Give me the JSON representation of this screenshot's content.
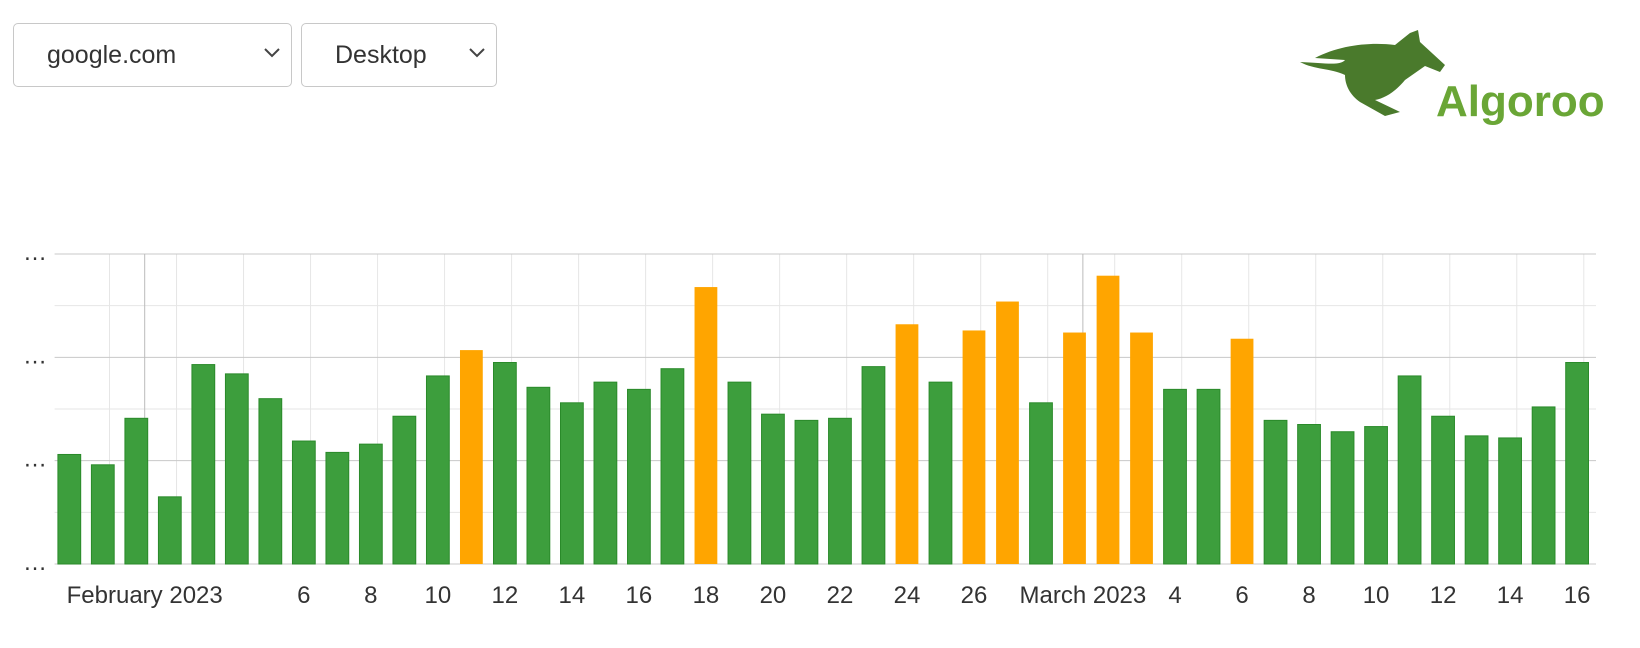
{
  "controls": {
    "site": "google.com",
    "device": "Desktop"
  },
  "logo": {
    "text": "Algoroo"
  },
  "chart_data": {
    "type": "bar",
    "categories": [
      null,
      null,
      "February 2023",
      null,
      null,
      null,
      null,
      "6",
      null,
      "8",
      null,
      "10",
      null,
      "12",
      null,
      "14",
      null,
      "16",
      null,
      "18",
      null,
      "20",
      null,
      "22",
      null,
      "24",
      null,
      "26",
      null,
      null,
      "March 2023",
      null,
      null,
      "4",
      null,
      "6",
      null,
      "8",
      null,
      "10",
      null,
      "12",
      null,
      "14",
      null,
      "16"
    ],
    "values": [
      1.06,
      0.96,
      1.41,
      0.65,
      1.93,
      1.84,
      1.6,
      1.19,
      1.08,
      1.16,
      1.43,
      1.82,
      2.07,
      1.95,
      1.71,
      1.56,
      1.76,
      1.69,
      1.89,
      2.68,
      1.76,
      1.45,
      1.39,
      1.41,
      1.91,
      2.32,
      1.76,
      2.26,
      2.54,
      1.56,
      2.24,
      2.79,
      2.24,
      1.69,
      1.69,
      2.18,
      1.39,
      1.35,
      1.28,
      1.33,
      1.82,
      1.43,
      1.24,
      1.22,
      1.52,
      1.95
    ],
    "colors": [
      "#3d9e3d",
      "#3d9e3d",
      "#3d9e3d",
      "#3d9e3d",
      "#3d9e3d",
      "#3d9e3d",
      "#3d9e3d",
      "#3d9e3d",
      "#3d9e3d",
      "#3d9e3d",
      "#3d9e3d",
      "#3d9e3d",
      "#ffa500",
      "#3d9e3d",
      "#3d9e3d",
      "#3d9e3d",
      "#3d9e3d",
      "#3d9e3d",
      "#3d9e3d",
      "#ffa500",
      "#3d9e3d",
      "#3d9e3d",
      "#3d9e3d",
      "#3d9e3d",
      "#3d9e3d",
      "#ffa500",
      "#3d9e3d",
      "#ffa500",
      "#ffa500",
      "#3d9e3d",
      "#ffa500",
      "#ffa500",
      "#ffa500",
      "#3d9e3d",
      "#3d9e3d",
      "#ffa500",
      "#3d9e3d",
      "#3d9e3d",
      "#3d9e3d",
      "#3d9e3d",
      "#3d9e3d",
      "#3d9e3d",
      "#3d9e3d",
      "#3d9e3d",
      "#3d9e3d",
      "#3d9e3d"
    ],
    "ylim": [
      0,
      3
    ],
    "yticks": [
      {
        "value": 0,
        "label": "…"
      },
      {
        "value": 1,
        "label": "…"
      },
      {
        "value": 2,
        "label": "…"
      },
      {
        "value": 3,
        "label": "…"
      }
    ],
    "grid": true
  }
}
